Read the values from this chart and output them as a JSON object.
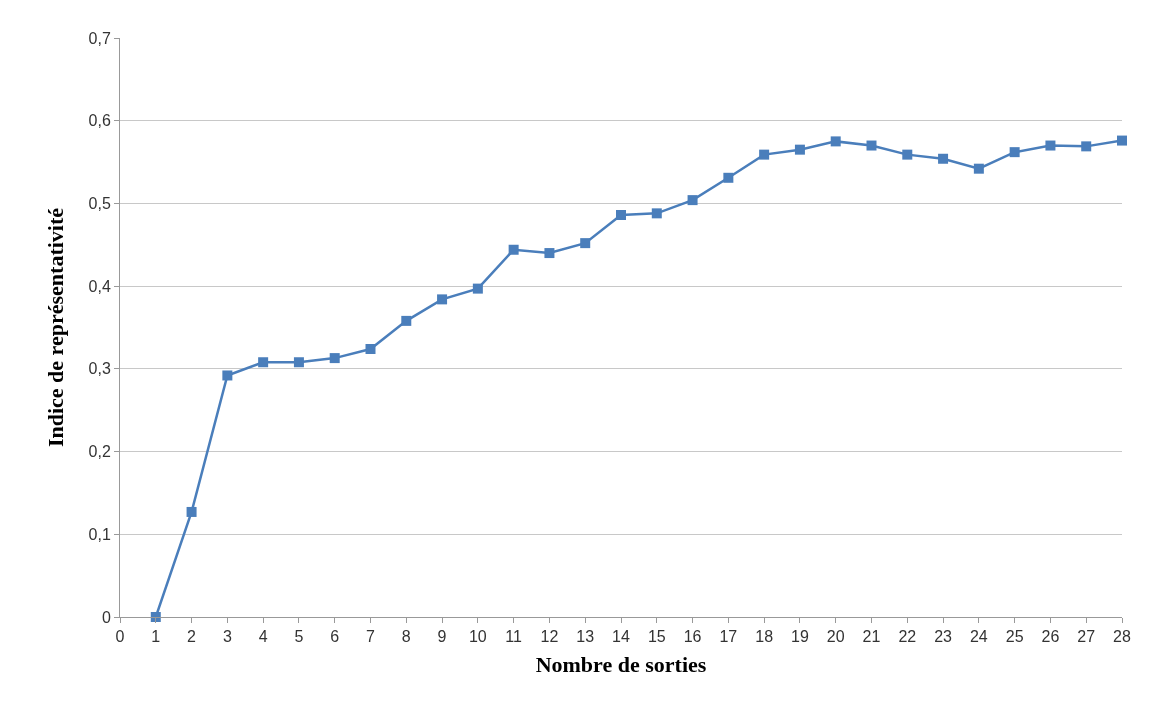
{
  "chart_data": {
    "type": "line",
    "xlabel": "Nombre de sorties",
    "ylabel": "Indice de représentativité",
    "x": [
      1,
      2,
      3,
      4,
      5,
      6,
      7,
      8,
      9,
      10,
      11,
      12,
      13,
      14,
      15,
      16,
      17,
      18,
      19,
      20,
      21,
      22,
      23,
      24,
      25,
      26,
      27,
      28
    ],
    "series": [
      {
        "color": "#4a7ebb",
        "values": [
          0,
          0.127,
          0.292,
          0.308,
          0.308,
          0.313,
          0.324,
          0.358,
          0.384,
          0.397,
          0.444,
          0.44,
          0.452,
          0.486,
          0.488,
          0.504,
          0.531,
          0.559,
          0.565,
          0.575,
          0.57,
          0.559,
          0.554,
          0.542,
          0.562,
          0.57,
          0.569,
          0.576
        ]
      }
    ],
    "xlim": [
      0,
      28
    ],
    "xticks": [
      0,
      1,
      2,
      3,
      4,
      5,
      6,
      7,
      8,
      9,
      10,
      11,
      12,
      13,
      14,
      15,
      16,
      17,
      18,
      19,
      20,
      21,
      22,
      23,
      24,
      25,
      26,
      27,
      28
    ],
    "ylim": [
      0,
      0.7
    ],
    "yticks": [
      {
        "value": 0,
        "label": "0"
      },
      {
        "value": 0.1,
        "label": "0,1"
      },
      {
        "value": 0.2,
        "label": "0,2"
      },
      {
        "value": 0.3,
        "label": "0,3"
      },
      {
        "value": 0.4,
        "label": "0,4"
      },
      {
        "value": 0.5,
        "label": "0,5"
      },
      {
        "value": 0.6,
        "label": "0,6"
      },
      {
        "value": 0.7,
        "label": "0,7"
      }
    ],
    "grid": "y",
    "legend": false,
    "marker": "square",
    "line_style": "solid"
  }
}
